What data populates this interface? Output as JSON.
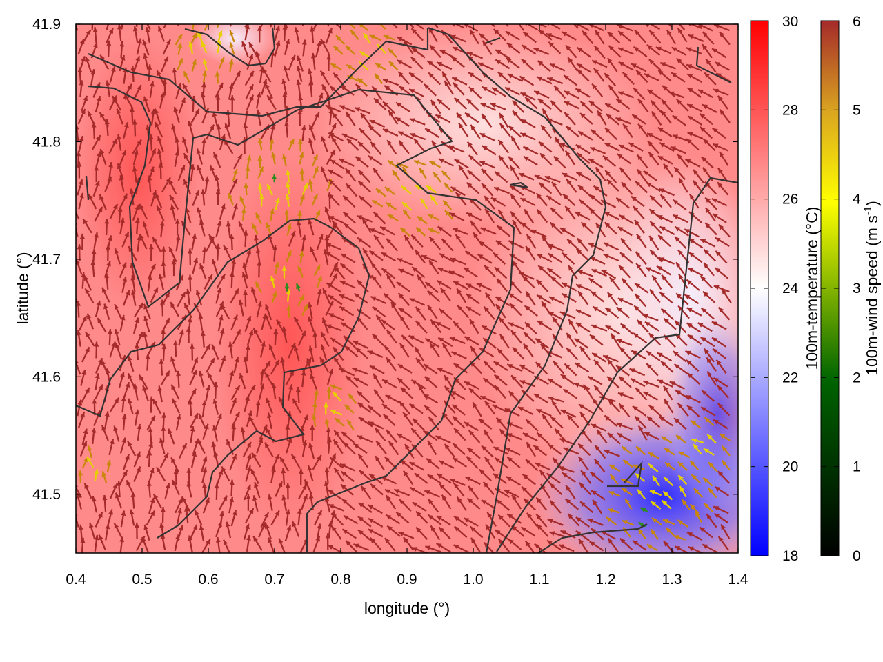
{
  "chart_data": {
    "type": "heatmap",
    "title": "",
    "xlabel": "longitude (°)",
    "ylabel": "latitude (°)",
    "xlim": [
      0.4,
      1.4
    ],
    "ylim": [
      41.45,
      41.9
    ],
    "x_ticks": [
      "0.4",
      "0.5",
      "0.6",
      "0.7",
      "0.8",
      "0.9",
      "1.0",
      "1.1",
      "1.2",
      "1.3",
      "1.4"
    ],
    "y_ticks": [
      "41.5",
      "41.6",
      "41.7",
      "41.8",
      "41.9"
    ],
    "temperature_colorbar": {
      "label": "100m-temperature (°C)",
      "range": [
        18,
        30
      ],
      "ticks": [
        "18",
        "20",
        "22",
        "24",
        "26",
        "28",
        "30"
      ],
      "colors": [
        "#0000ff",
        "#ffffff",
        "#ff0000"
      ]
    },
    "wind_colorbar": {
      "label_prefix": "100m-wind speed (m s",
      "label_superscript": "-1",
      "label_suffix": ")",
      "range": [
        0,
        6
      ],
      "ticks": [
        "0",
        "1",
        "2",
        "3",
        "4",
        "5",
        "6"
      ],
      "colors": [
        "#000000",
        "#006400",
        "#ffff00",
        "#daa520",
        "#a52a2a"
      ]
    },
    "temperature_field_samples": [
      {
        "lon": 0.5,
        "lat": 41.85,
        "temp": 27
      },
      {
        "lon": 0.7,
        "lat": 41.65,
        "temp": 28
      },
      {
        "lon": 0.9,
        "lat": 41.8,
        "temp": 25
      },
      {
        "lon": 1.1,
        "lat": 41.7,
        "temp": 25
      },
      {
        "lon": 1.3,
        "lat": 41.6,
        "temp": 23
      },
      {
        "lon": 1.25,
        "lat": 41.5,
        "temp": 20
      },
      {
        "lon": 0.5,
        "lat": 41.5,
        "temp": 27
      },
      {
        "lon": 0.9,
        "lat": 41.5,
        "temp": 26
      }
    ],
    "wind_field": {
      "dominant_speed": 6,
      "dominant_direction": "north-west"
    }
  }
}
